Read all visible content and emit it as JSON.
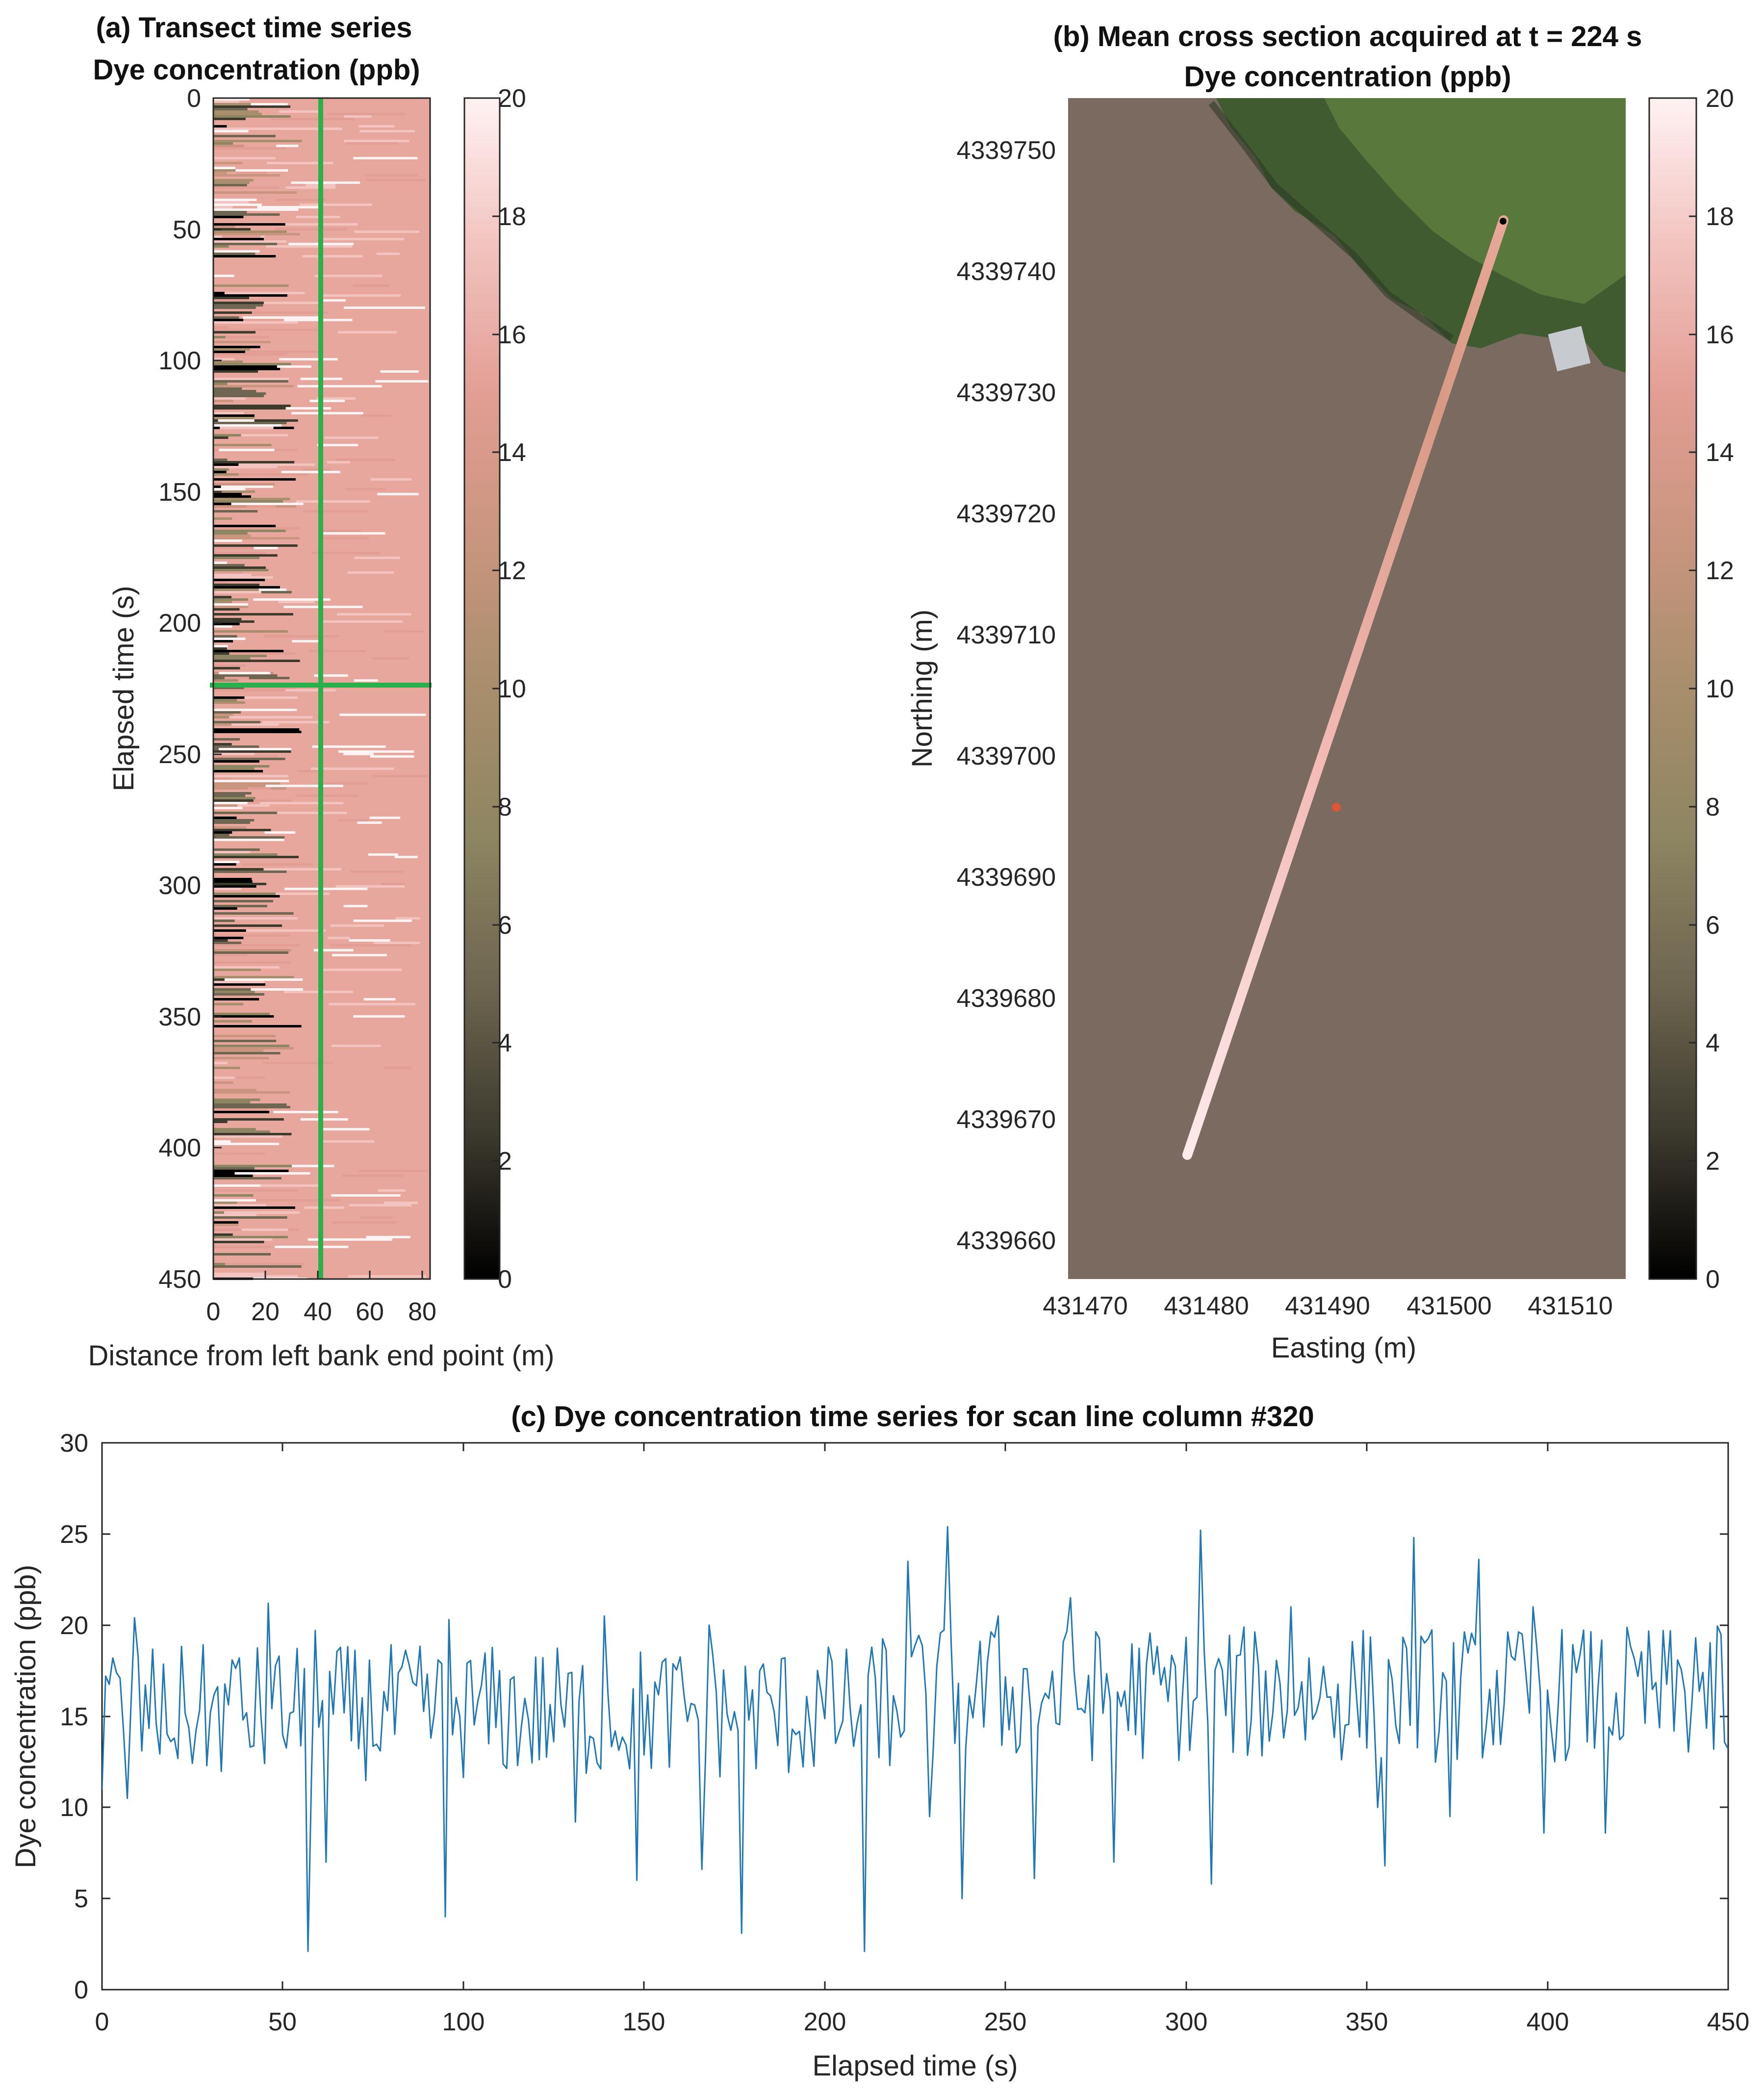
{
  "chart_data": [
    {
      "id": "a",
      "type": "heatmap",
      "title": "(a) Transect time series",
      "subtitle": "Dye concentration (ppb)",
      "xlabel": "Distance from left bank end point (m)",
      "ylabel": "Elapsed time (s)",
      "xlim": [
        0,
        83
      ],
      "ylim": [
        0,
        450
      ],
      "y_reversed": true,
      "xticks": [
        "0",
        "20",
        "40",
        "60",
        "80"
      ],
      "yticks": [
        "0",
        "50",
        "100",
        "150",
        "200",
        "250",
        "300",
        "350",
        "400",
        "450"
      ],
      "colorbar": {
        "range": [
          0,
          20
        ],
        "ticks": [
          "0",
          "2",
          "4",
          "6",
          "8",
          "10",
          "12",
          "14",
          "16",
          "18",
          "20"
        ]
      },
      "colormap": [
        "#000000",
        "#3d3a2e",
        "#6e6650",
        "#8e8562",
        "#a88e6c",
        "#c9957f",
        "#e29e94",
        "#f2c3bf",
        "#fff2f2"
      ],
      "overlay_lines": [
        {
          "orientation": "vertical",
          "x": 40,
          "color": "#28b04a"
        },
        {
          "orientation": "horizontal",
          "y": 224,
          "color": "#28b04a"
        }
      ]
    },
    {
      "id": "b",
      "type": "scatter",
      "title": "(b) Mean cross section acquired at t = 224 s",
      "subtitle": "Dye concentration (ppb)",
      "xlabel": "Easting (m)",
      "ylabel": "Northing (m)",
      "xlim": [
        431466,
        431514
      ],
      "ylim": [
        4339657,
        4339754.5
      ],
      "xticks": [
        "431470",
        "431480",
        "431490",
        "431500",
        "431510"
      ],
      "yticks": [
        "4339660",
        "4339670",
        "4339680",
        "4339690",
        "4339700",
        "4339710",
        "4339720",
        "4339730",
        "4339740",
        "4339750"
      ],
      "transect": {
        "start": [
          431479.7,
          4339667.5
        ],
        "end": [
          431504.4,
          4339744.5
        ]
      },
      "colorbar": {
        "range": [
          0,
          20
        ],
        "ticks": [
          "0",
          "2",
          "4",
          "6",
          "8",
          "10",
          "12",
          "14",
          "16",
          "18",
          "20"
        ]
      },
      "background": "aerial image of river with tree-covered bank at top-right"
    },
    {
      "id": "c",
      "type": "line",
      "title": "(c) Dye concentration time series for scan line column #320",
      "xlabel": "Elapsed time (s)",
      "ylabel": "Dye concentration (ppb)",
      "xlim": [
        0,
        450
      ],
      "ylim": [
        0,
        30
      ],
      "xticks": [
        "0",
        "50",
        "100",
        "150",
        "200",
        "250",
        "300",
        "350",
        "400",
        "450"
      ],
      "yticks": [
        "0",
        "5",
        "10",
        "15",
        "20",
        "25",
        "30"
      ],
      "line_color": "#1f77b4",
      "key_points": [
        [
          0,
          11
        ],
        [
          3,
          18.2
        ],
        [
          7,
          10.5
        ],
        [
          9,
          20.4
        ],
        [
          15,
          14.6
        ],
        [
          20,
          13.8
        ],
        [
          38,
          18.2
        ],
        [
          46,
          21.2
        ],
        [
          57,
          2.1
        ],
        [
          59,
          19.7
        ],
        [
          62,
          7
        ],
        [
          95,
          4
        ],
        [
          96,
          20.3
        ],
        [
          131,
          9.2
        ],
        [
          139,
          20.5
        ],
        [
          148,
          6
        ],
        [
          166,
          6.6
        ],
        [
          168,
          20
        ],
        [
          177,
          3.1
        ],
        [
          211,
          2.1
        ],
        [
          218,
          12.3
        ],
        [
          223,
          23.5
        ],
        [
          229,
          9.5
        ],
        [
          234,
          25.4
        ],
        [
          238,
          5
        ],
        [
          248,
          20.5
        ],
        [
          258,
          6.1
        ],
        [
          268,
          21.5
        ],
        [
          280,
          7
        ],
        [
          304,
          25.2
        ],
        [
          307,
          5.8
        ],
        [
          329,
          21
        ],
        [
          353,
          10
        ],
        [
          355,
          6.8
        ],
        [
          363,
          24.8
        ],
        [
          373,
          9.5
        ],
        [
          381,
          23.6
        ],
        [
          396,
          21
        ],
        [
          399,
          8.6
        ],
        [
          416,
          8.6
        ],
        [
          441,
          19.3
        ],
        [
          446,
          13.2
        ],
        [
          448,
          19.5
        ],
        [
          450,
          13.2
        ]
      ]
    }
  ]
}
